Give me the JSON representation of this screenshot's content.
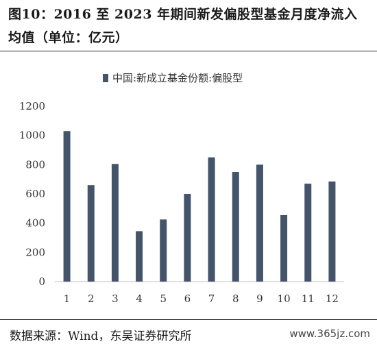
{
  "figure": {
    "title": "图10：2016 至 2023 年期间新发偏股型基金月度净流入均值（单位：亿元）",
    "source": "数据来源：Wind，东吴证券研究所",
    "watermark": "www.365jz.com"
  },
  "chart_data": {
    "type": "bar",
    "categories": [
      "1",
      "2",
      "3",
      "4",
      "5",
      "6",
      "7",
      "8",
      "9",
      "10",
      "11",
      "12"
    ],
    "series": [
      {
        "name": "中国:新成立基金份额:偏股型",
        "values": [
          1030,
          660,
          805,
          345,
          425,
          600,
          850,
          750,
          800,
          455,
          670,
          685
        ],
        "color": "#44546a"
      }
    ],
    "ylim": [
      0,
      1200
    ],
    "yticks": [
      0,
      200,
      400,
      600,
      800,
      1000,
      1200
    ],
    "grid": false,
    "legend": "top-center"
  }
}
